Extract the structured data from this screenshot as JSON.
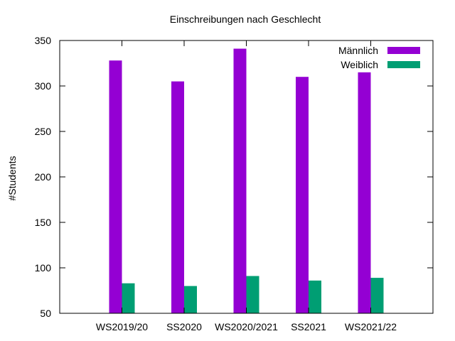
{
  "chart_data": {
    "type": "bar",
    "title": "Einschreibungen nach Geschlecht",
    "xlabel": "",
    "ylabel": "#Students",
    "ylim": [
      50,
      350
    ],
    "yticks": [
      50,
      100,
      150,
      200,
      250,
      300,
      350
    ],
    "categories": [
      "WS2019/20",
      "SS2020",
      "WS2020/2021",
      "SS2021",
      "WS2021/22"
    ],
    "series": [
      {
        "name": "Männlich",
        "color": "#9400d3",
        "values": [
          328,
          305,
          341,
          310,
          315
        ]
      },
      {
        "name": "Weiblich",
        "color": "#009e73",
        "values": [
          83,
          80,
          91,
          86,
          89
        ]
      }
    ],
    "legend": "top-right",
    "grid": false
  }
}
